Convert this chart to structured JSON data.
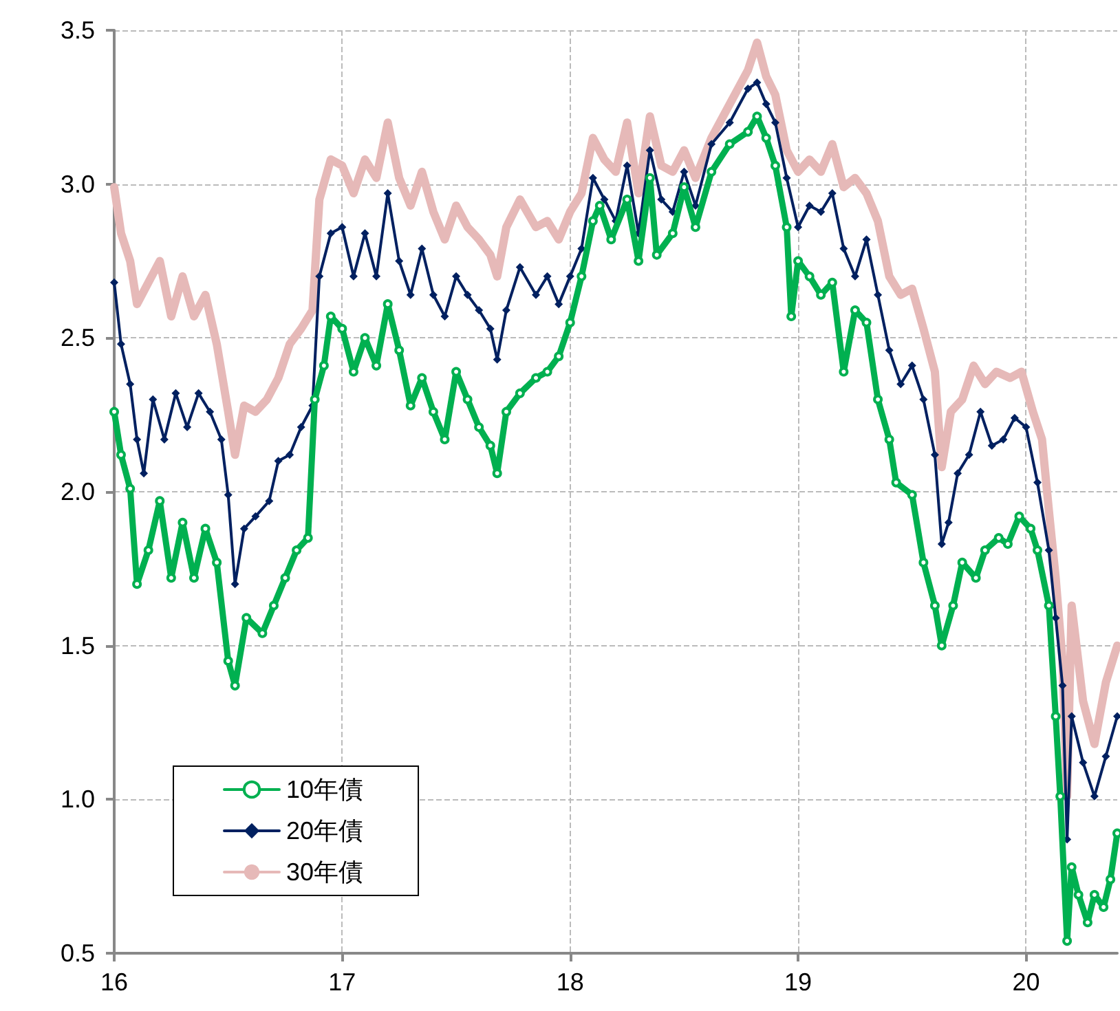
{
  "chart_data": {
    "type": "line",
    "xlim": [
      16,
      20.4
    ],
    "xticks": [
      16,
      17,
      18,
      19,
      20
    ],
    "ylim": [
      0.5,
      3.5
    ],
    "yticks": [
      0.5,
      {
        "value": 1,
        "label": "1.0"
      },
      1.5,
      {
        "value": 2,
        "label": "2.0"
      },
      2.5,
      {
        "value": 3,
        "label": "3.0"
      },
      3.5
    ],
    "grid": true,
    "legend": "bottom left",
    "line_style": "solid",
    "series": [
      {
        "name": "10年債",
        "color": "#00b050",
        "marker": "circle",
        "x": [
          16.0,
          16.03,
          16.07,
          16.1,
          16.15,
          16.2,
          16.25,
          16.3,
          16.35,
          16.4,
          16.45,
          16.5,
          16.53,
          16.58,
          16.65,
          16.7,
          16.75,
          16.8,
          16.85,
          16.88,
          16.92,
          16.95,
          17.0,
          17.05,
          17.1,
          17.15,
          17.2,
          17.25,
          17.3,
          17.35,
          17.4,
          17.45,
          17.5,
          17.55,
          17.6,
          17.65,
          17.68,
          17.72,
          17.78,
          17.85,
          17.9,
          17.95,
          18.0,
          18.05,
          18.1,
          18.13,
          18.18,
          18.25,
          18.3,
          18.35,
          18.38,
          18.45,
          18.5,
          18.55,
          18.62,
          18.7,
          18.78,
          18.82,
          18.86,
          18.9,
          18.95,
          18.97,
          19.0,
          19.05,
          19.1,
          19.15,
          19.2,
          19.25,
          19.3,
          19.35,
          19.4,
          19.43,
          19.5,
          19.55,
          19.6,
          19.63,
          19.68,
          19.72,
          19.78,
          19.82,
          19.88,
          19.92,
          19.97,
          20.02,
          20.05,
          20.1,
          20.13,
          20.15,
          20.18,
          20.2,
          20.23,
          20.27,
          20.3,
          20.34,
          20.37,
          20.4
        ],
        "values": [
          2.26,
          2.12,
          2.01,
          1.7,
          1.81,
          1.97,
          1.72,
          1.9,
          1.72,
          1.88,
          1.77,
          1.45,
          1.37,
          1.59,
          1.54,
          1.63,
          1.72,
          1.81,
          1.85,
          2.3,
          2.41,
          2.57,
          2.53,
          2.39,
          2.5,
          2.41,
          2.61,
          2.46,
          2.28,
          2.37,
          2.26,
          2.17,
          2.39,
          2.3,
          2.21,
          2.15,
          2.06,
          2.26,
          2.32,
          2.37,
          2.39,
          2.44,
          2.55,
          2.7,
          2.88,
          2.93,
          2.82,
          2.95,
          2.75,
          3.02,
          2.77,
          2.84,
          2.99,
          2.86,
          3.04,
          3.13,
          3.17,
          3.22,
          3.15,
          3.06,
          2.86,
          2.57,
          2.75,
          2.7,
          2.64,
          2.68,
          2.39,
          2.59,
          2.55,
          2.3,
          2.17,
          2.03,
          1.99,
          1.77,
          1.63,
          1.5,
          1.63,
          1.77,
          1.72,
          1.81,
          1.85,
          1.83,
          1.92,
          1.88,
          1.81,
          1.63,
          1.27,
          1.01,
          0.54,
          0.78,
          0.69,
          0.6,
          0.69,
          0.65,
          0.74,
          0.89
        ]
      },
      {
        "name": "20年債",
        "color": "#002060",
        "marker": "diamond",
        "x": [
          16.0,
          16.03,
          16.07,
          16.1,
          16.13,
          16.17,
          16.22,
          16.27,
          16.32,
          16.37,
          16.42,
          16.47,
          16.5,
          16.53,
          16.57,
          16.62,
          16.68,
          16.72,
          16.77,
          16.82,
          16.87,
          16.9,
          16.95,
          17.0,
          17.05,
          17.1,
          17.15,
          17.2,
          17.25,
          17.3,
          17.35,
          17.4,
          17.45,
          17.5,
          17.55,
          17.6,
          17.65,
          17.68,
          17.72,
          17.78,
          17.85,
          17.9,
          17.95,
          18.0,
          18.05,
          18.1,
          18.15,
          18.2,
          18.25,
          18.3,
          18.35,
          18.4,
          18.45,
          18.5,
          18.55,
          18.62,
          18.7,
          18.78,
          18.82,
          18.86,
          18.9,
          18.95,
          19.0,
          19.05,
          19.1,
          19.15,
          19.2,
          19.25,
          19.3,
          19.35,
          19.4,
          19.45,
          19.5,
          19.55,
          19.6,
          19.63,
          19.66,
          19.7,
          19.75,
          19.8,
          19.85,
          19.9,
          19.95,
          20.0,
          20.05,
          20.1,
          20.13,
          20.16,
          20.18,
          20.2,
          20.25,
          20.3,
          20.35,
          20.4
        ],
        "values": [
          2.68,
          2.48,
          2.35,
          2.17,
          2.06,
          2.3,
          2.17,
          2.32,
          2.21,
          2.32,
          2.26,
          2.17,
          1.99,
          1.7,
          1.88,
          1.92,
          1.97,
          2.1,
          2.12,
          2.21,
          2.28,
          2.7,
          2.84,
          2.86,
          2.7,
          2.84,
          2.7,
          2.97,
          2.75,
          2.64,
          2.79,
          2.64,
          2.57,
          2.7,
          2.64,
          2.59,
          2.53,
          2.43,
          2.59,
          2.73,
          2.64,
          2.7,
          2.61,
          2.7,
          2.79,
          3.02,
          2.95,
          2.88,
          3.06,
          2.84,
          3.11,
          2.95,
          2.91,
          3.04,
          2.93,
          3.13,
          3.2,
          3.31,
          3.33,
          3.26,
          3.2,
          3.02,
          2.86,
          2.93,
          2.91,
          2.97,
          2.79,
          2.7,
          2.82,
          2.64,
          2.46,
          2.35,
          2.41,
          2.3,
          2.12,
          1.83,
          1.9,
          2.06,
          2.12,
          2.26,
          2.15,
          2.17,
          2.24,
          2.21,
          2.03,
          1.81,
          1.59,
          1.37,
          0.87,
          1.27,
          1.12,
          1.01,
          1.14,
          1.27
        ]
      },
      {
        "name": "30年債",
        "color": "#e6b9b8",
        "marker": "none",
        "x": [
          16.0,
          16.03,
          16.07,
          16.1,
          16.15,
          16.2,
          16.25,
          16.3,
          16.35,
          16.4,
          16.45,
          16.5,
          16.53,
          16.57,
          16.62,
          16.67,
          16.72,
          16.77,
          16.82,
          16.87,
          16.9,
          16.95,
          17.0,
          17.05,
          17.1,
          17.15,
          17.2,
          17.25,
          17.3,
          17.35,
          17.4,
          17.45,
          17.5,
          17.55,
          17.6,
          17.65,
          17.68,
          17.72,
          17.78,
          17.85,
          17.9,
          17.95,
          18.0,
          18.05,
          18.1,
          18.15,
          18.2,
          18.25,
          18.3,
          18.35,
          18.4,
          18.45,
          18.5,
          18.55,
          18.62,
          18.7,
          18.78,
          18.82,
          18.86,
          18.9,
          18.95,
          19.0,
          19.05,
          19.1,
          19.15,
          19.2,
          19.25,
          19.3,
          19.35,
          19.4,
          19.45,
          19.5,
          19.55,
          19.6,
          19.63,
          19.67,
          19.72,
          19.77,
          19.82,
          19.87,
          19.93,
          19.98,
          20.03,
          20.07,
          20.1,
          20.13,
          20.16,
          20.18,
          20.2,
          20.25,
          20.3,
          20.35,
          20.4
        ],
        "values": [
          2.99,
          2.84,
          2.75,
          2.61,
          2.68,
          2.75,
          2.57,
          2.7,
          2.57,
          2.64,
          2.48,
          2.26,
          2.12,
          2.28,
          2.26,
          2.3,
          2.37,
          2.48,
          2.53,
          2.59,
          2.95,
          3.08,
          3.06,
          2.97,
          3.08,
          3.02,
          3.2,
          3.02,
          2.93,
          3.04,
          2.91,
          2.82,
          2.93,
          2.86,
          2.82,
          2.77,
          2.7,
          2.86,
          2.95,
          2.86,
          2.88,
          2.82,
          2.91,
          2.97,
          3.15,
          3.08,
          3.04,
          3.2,
          2.97,
          3.22,
          3.06,
          3.04,
          3.11,
          3.02,
          3.15,
          3.26,
          3.37,
          3.46,
          3.35,
          3.29,
          3.11,
          3.04,
          3.08,
          3.04,
          3.13,
          2.99,
          3.02,
          2.97,
          2.88,
          2.7,
          2.64,
          2.66,
          2.53,
          2.39,
          2.08,
          2.26,
          2.3,
          2.41,
          2.35,
          2.39,
          2.37,
          2.39,
          2.26,
          2.17,
          1.94,
          1.72,
          1.45,
          1.01,
          1.63,
          1.32,
          1.18,
          1.38,
          1.5
        ]
      }
    ]
  }
}
